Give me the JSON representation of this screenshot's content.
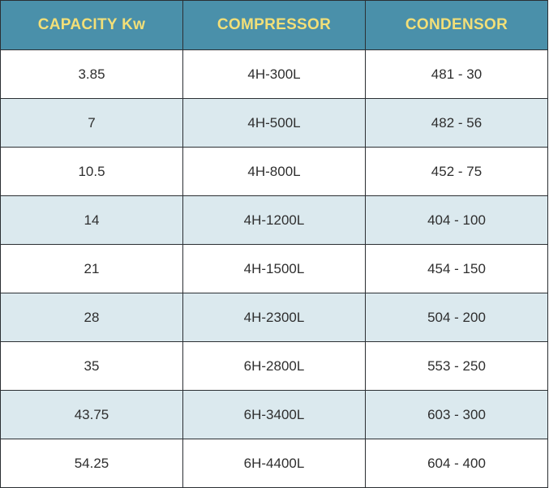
{
  "table": {
    "headers": [
      "CAPACITY Kw",
      "COMPRESSOR",
      "CONDENSOR"
    ],
    "rows": [
      [
        "3.85",
        "4H-300L",
        "481 - 30"
      ],
      [
        "7",
        "4H-500L",
        "482 - 56"
      ],
      [
        "10.5",
        "4H-800L",
        "452 - 75"
      ],
      [
        "14",
        "4H-1200L",
        "404 - 100"
      ],
      [
        "21",
        "4H-1500L",
        "454 - 150"
      ],
      [
        "28",
        "4H-2300L",
        "504 - 200"
      ],
      [
        "35",
        "6H-2800L",
        "553 - 250"
      ],
      [
        "43.75",
        "6H-3400L",
        "603 - 300"
      ],
      [
        "54.25",
        "6H-4400L",
        "604 - 400"
      ]
    ]
  },
  "colors": {
    "header_bg": "#4a90aa",
    "header_text": "#f2df78",
    "row_alt_bg": "#dbe9ee",
    "row_bg": "#ffffff",
    "border": "#2b2f33",
    "cell_text": "#2e2e2e"
  }
}
